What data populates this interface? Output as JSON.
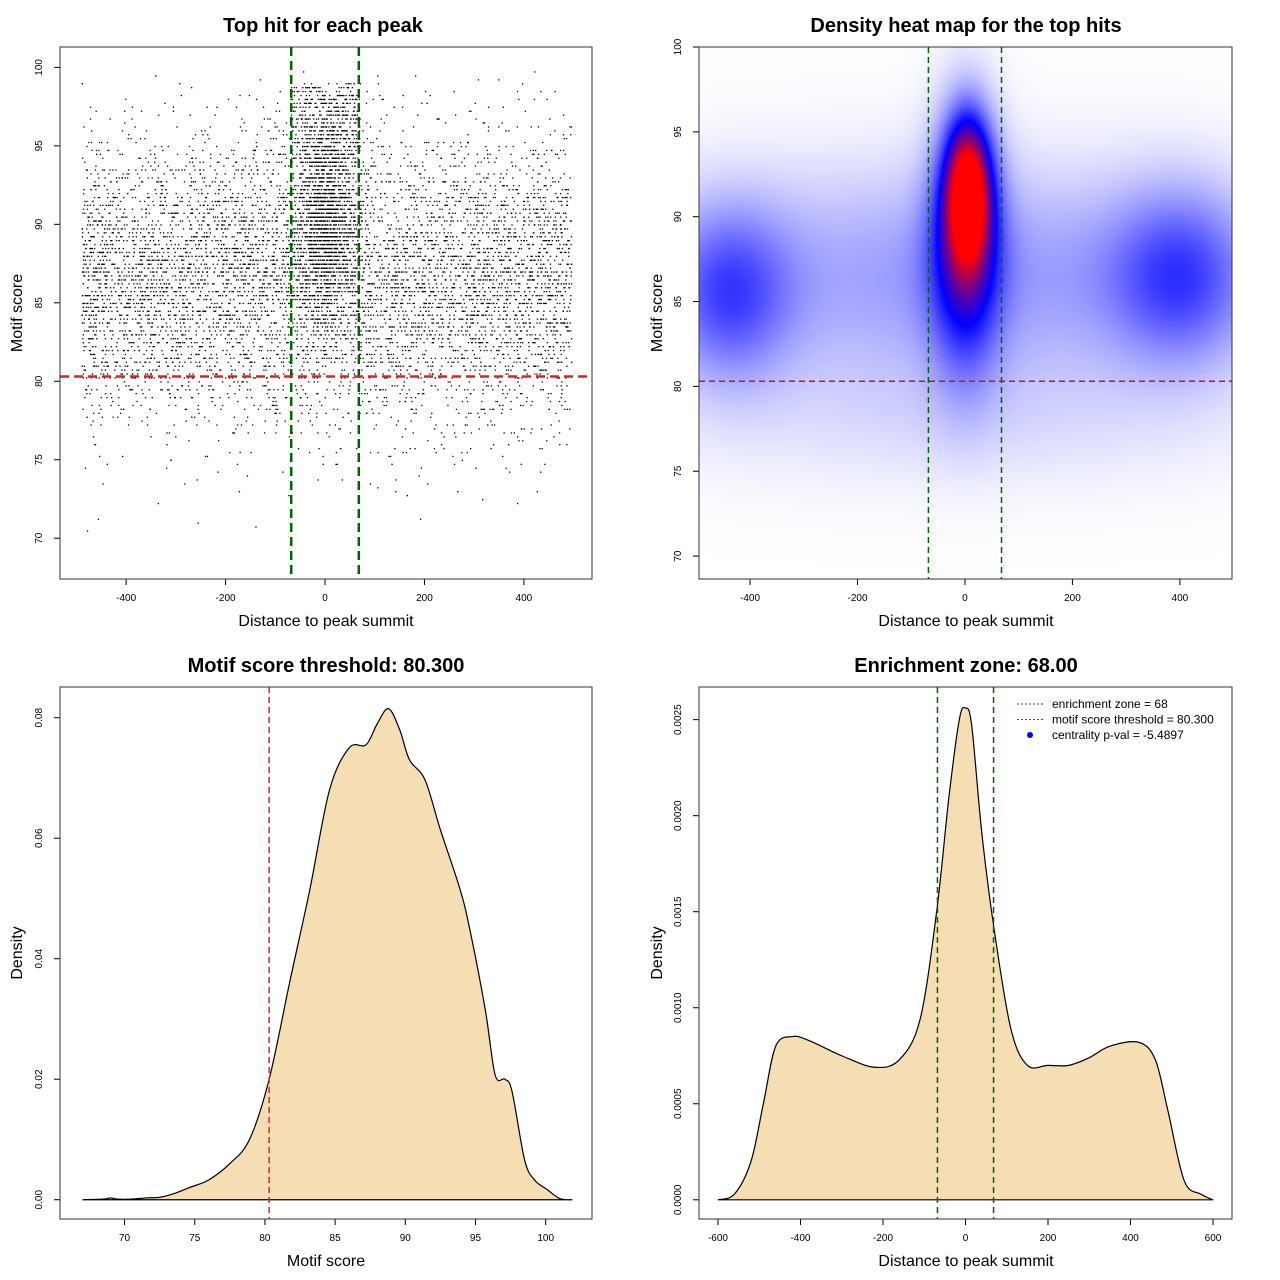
{
  "chart_data": [
    {
      "type": "scatter",
      "title": "Top hit for each peak",
      "xlabel": "Distance to peak summit",
      "ylabel": "Motif score",
      "xlim": [
        -533,
        537
      ],
      "ylim": [
        67.4,
        101.3
      ],
      "xticks": [
        -400,
        -200,
        0,
        200,
        400
      ],
      "yticks": [
        70,
        75,
        80,
        85,
        90,
        95,
        100
      ],
      "grid": false,
      "vlines": {
        "values": [
          -68,
          68
        ],
        "color": "#006400",
        "style": "dashed"
      },
      "hlines": {
        "values": [
          80.3
        ],
        "color": "#dd2222",
        "style": "dashed"
      },
      "point_color": "#000000"
    },
    {
      "type": "heatmap",
      "title": "Density heat map for the top hits",
      "xlabel": "Distance to peak summit",
      "ylabel": "Motif score",
      "xlim": [
        -495,
        497
      ],
      "ylim": [
        68.65,
        100
      ],
      "xticks": [
        -400,
        -200,
        0,
        200,
        400
      ],
      "yticks": [
        70,
        75,
        80,
        85,
        90,
        95,
        100
      ],
      "colors": [
        "#ffffff",
        "#0000ff",
        "#ff0000"
      ],
      "vlines": {
        "values": [
          -68,
          68
        ],
        "color": "#006400",
        "style": "dashed"
      },
      "hlines": {
        "values": [
          80.3
        ],
        "color": "#aa2222",
        "style": "dashed"
      }
    },
    {
      "type": "area",
      "title": "Motif score threshold: 80.300",
      "xlabel": "Motif score",
      "ylabel": "Density",
      "xlim": [
        65.4,
        103.3
      ],
      "ylim": [
        -0.0032,
        0.0851
      ],
      "xticks": [
        70,
        75,
        80,
        85,
        90,
        95,
        100
      ],
      "yticks": [
        "0.00",
        "0.02",
        "0.04",
        "0.06",
        "0.08"
      ],
      "fill": "#f5deb3",
      "vlines": {
        "values": [
          80.3
        ],
        "color": "#dd2222",
        "style": "dashed"
      },
      "x": [
        67,
        68.5,
        69,
        69.5,
        70.5,
        71.5,
        72.5,
        73.5,
        74.6,
        76,
        77.5,
        78.9,
        80.3,
        81.8,
        83.2,
        84.6,
        86,
        87.2,
        88,
        88.8,
        89.6,
        90.3,
        91.4,
        92.5,
        93.9,
        94.6,
        95.7,
        96.4,
        97.1,
        97.6,
        98.5,
        99.2,
        100.1,
        101,
        101.9
      ],
      "y": [
        0,
        0.0001,
        0.0003,
        0.0001,
        0.0001,
        0.0003,
        0.0004,
        0.001,
        0.002,
        0.0033,
        0.006,
        0.01,
        0.02,
        0.0365,
        0.0515,
        0.068,
        0.075,
        0.0755,
        0.079,
        0.0815,
        0.078,
        0.073,
        0.0697,
        0.0614,
        0.0515,
        0.0448,
        0.0315,
        0.0207,
        0.02,
        0.018,
        0.0066,
        0.0033,
        0.0017,
        0.0002,
        0
      ]
    },
    {
      "type": "area",
      "title": "Enrichment zone: 68.00",
      "xlabel": "Distance to peak summit",
      "ylabel": "Density",
      "xlim": [
        -646,
        646
      ],
      "ylim": [
        -0.0001,
        0.00267
      ],
      "xticks": [
        -600,
        -400,
        -200,
        0,
        200,
        400,
        600
      ],
      "yticks": [
        "0.0000",
        "0.0005",
        "0.0010",
        "0.0015",
        "0.0020",
        "0.0025"
      ],
      "fill": "#f5deb3",
      "vlines": {
        "values": [
          -68,
          68
        ],
        "color": "#006400",
        "style": "dashed"
      },
      "x": [
        -600,
        -560,
        -520,
        -490,
        -460,
        -420,
        -380,
        -300,
        -220,
        -160,
        -110,
        -70,
        -40,
        -15,
        0,
        15,
        40,
        70,
        110,
        150,
        200,
        250,
        300,
        350,
        420,
        460,
        490,
        530,
        570,
        600
      ],
      "y": [
        0,
        3e-05,
        0.0002,
        0.0005,
        0.0008,
        0.00085,
        0.00083,
        0.00075,
        0.00069,
        0.00073,
        0.00094,
        0.0015,
        0.0021,
        0.0025,
        0.00256,
        0.00247,
        0.0019,
        0.0014,
        0.00089,
        0.0007,
        0.0007,
        0.0007,
        0.00074,
        0.0008,
        0.00082,
        0.00073,
        0.00047,
        0.0001,
        3e-05,
        0
      ],
      "legend": {
        "position": "top-right",
        "entries": [
          {
            "label": "enrichment zone = 68",
            "color": "#006400",
            "symbol": "dotted-line"
          },
          {
            "label": "motif score threshold = 80.300",
            "color": "#ff0000",
            "symbol": "dotted-line"
          },
          {
            "label": "centrality p-val = -5.4897",
            "color": "#0000ff",
            "symbol": "dot"
          }
        ]
      }
    }
  ]
}
